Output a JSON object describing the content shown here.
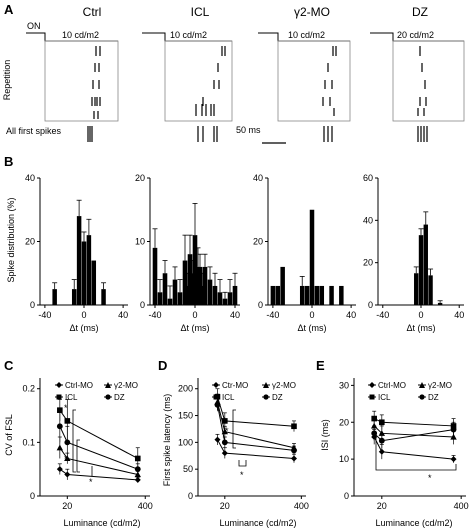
{
  "panel_labels": {
    "a": "A",
    "b": "B",
    "c": "C",
    "d": "D",
    "e": "E"
  },
  "panel_a": {
    "on_label": "ON",
    "repetition_label": "Repetition",
    "all_first_spikes_label": "All first spikes",
    "scalebar_label": "50 ms",
    "conditions": [
      {
        "title": "Ctrl",
        "luminance": "10 cd/m2"
      },
      {
        "title": "ICL",
        "luminance": "10 cd/m2"
      },
      {
        "title": "γ2-MO",
        "luminance": "10 cd/m2"
      },
      {
        "title": "DZ",
        "luminance": "20 cd/m2"
      }
    ]
  },
  "panel_b": {
    "ylabel": "Spike distribution (%)",
    "xlabel": "Δt  (ms)"
  },
  "panel_c": {
    "ylabel": "CV of FSL",
    "xlabel": "Luminance (cd/m2)",
    "legend": [
      "Ctrl-MO",
      "γ2-MO",
      "ICL",
      "DZ"
    ],
    "sig": [
      "*",
      "*",
      "*"
    ]
  },
  "panel_d": {
    "ylabel": "First spike latency (ms)",
    "xlabel": "Luminance (cd/m2)",
    "legend": [
      "Ctr-MO",
      "γ2-MO",
      "ICL",
      "DZ"
    ],
    "sig": [
      "*",
      "*"
    ]
  },
  "panel_e": {
    "ylabel": "ISI (ms)",
    "xlabel": "Luminance (cd/m2)",
    "legend": [
      "Ctrl-MO",
      "γ2-MO",
      "ICL",
      "DZ"
    ],
    "sig": [
      "*"
    ]
  },
  "chart_data": [
    {
      "type": "bar",
      "panel": "B1",
      "x": [
        -30,
        -10,
        -5,
        0,
        5,
        10,
        20
      ],
      "values": [
        5,
        5,
        28,
        20,
        22,
        14,
        5
      ],
      "errors": [
        2,
        3,
        5,
        3,
        5,
        0,
        2
      ],
      "xticks": [
        -40,
        0,
        40
      ],
      "yticks": [
        0,
        20,
        40
      ],
      "xlim": [
        -45,
        45
      ],
      "ylim": [
        0,
        40
      ]
    },
    {
      "type": "bar",
      "panel": "B2",
      "x": [
        -40,
        -35,
        -30,
        -25,
        -20,
        -15,
        -10,
        -7,
        -5,
        -3,
        0,
        3,
        5,
        8,
        10,
        15,
        20,
        25,
        30,
        35,
        40
      ],
      "values": [
        9,
        2,
        5,
        1,
        4,
        2,
        7,
        3,
        8,
        5,
        11,
        6,
        6,
        3,
        6,
        4,
        3,
        2,
        1,
        2,
        3
      ],
      "errors": [
        3,
        2,
        2,
        2,
        2,
        2,
        4,
        2,
        3,
        2,
        5,
        3,
        2,
        2,
        2,
        2,
        2,
        2,
        1,
        2,
        2
      ],
      "xticks": [
        -40,
        0,
        40
      ],
      "yticks": [
        0,
        10,
        20
      ],
      "xlim": [
        -45,
        45
      ],
      "ylim": [
        0,
        20
      ]
    },
    {
      "type": "bar",
      "panel": "B3",
      "x": [
        -40,
        -35,
        -30,
        -10,
        -5,
        0,
        5,
        10,
        20,
        30
      ],
      "values": [
        6,
        6,
        12,
        6,
        6,
        30,
        6,
        6,
        6,
        6
      ],
      "errors": [
        0,
        0,
        0,
        3,
        0,
        0,
        0,
        0,
        0,
        0
      ],
      "xticks": [
        -40,
        0,
        40
      ],
      "yticks": [
        0,
        20,
        40
      ],
      "xlim": [
        -45,
        45
      ],
      "ylim": [
        0,
        40
      ]
    },
    {
      "type": "bar",
      "panel": "B4",
      "x": [
        -5,
        0,
        5,
        10,
        20
      ],
      "values": [
        15,
        33,
        38,
        14,
        1
      ],
      "errors": [
        3,
        3,
        6,
        3,
        1
      ],
      "xticks": [
        -40,
        0,
        40
      ],
      "yticks": [
        0,
        20,
        40,
        60
      ],
      "xlim": [
        -45,
        45
      ],
      "ylim": [
        0,
        60
      ]
    },
    {
      "type": "line",
      "panel": "C",
      "xscale": "log",
      "xticks": [
        20,
        400
      ],
      "yticks": [
        0,
        0.1,
        0.2
      ],
      "xlim": [
        7,
        480
      ],
      "ylim": [
        0,
        0.22
      ],
      "series": [
        {
          "name": "Ctrl-MO",
          "marker": "diamond",
          "x": [
            15,
            20,
            300
          ],
          "y": [
            0.05,
            0.04,
            0.03
          ],
          "err": [
            0.01,
            0.01,
            0.005
          ]
        },
        {
          "name": "γ2-MO",
          "marker": "triangle",
          "x": [
            15,
            20,
            300
          ],
          "y": [
            0.09,
            0.07,
            0.04
          ],
          "err": [
            0.02,
            0.01,
            0.01
          ]
        },
        {
          "name": "ICL",
          "marker": "square",
          "x": [
            15,
            20,
            300
          ],
          "y": [
            0.16,
            0.14,
            0.07
          ],
          "err": [
            0.02,
            0.04,
            0.02
          ]
        },
        {
          "name": "DZ",
          "marker": "circle",
          "x": [
            15,
            20,
            300
          ],
          "y": [
            0.13,
            0.1,
            0.05
          ],
          "err": [
            0.03,
            0.03,
            0.01
          ]
        }
      ]
    },
    {
      "type": "line",
      "panel": "D",
      "xscale": "log",
      "xticks": [
        20,
        400
      ],
      "yticks": [
        0,
        50,
        100,
        150,
        200
      ],
      "xlim": [
        7,
        480
      ],
      "ylim": [
        0,
        220
      ],
      "series": [
        {
          "name": "Ctr-MO",
          "marker": "diamond",
          "x": [
            15,
            20,
            300
          ],
          "y": [
            105,
            80,
            70
          ],
          "err": [
            10,
            10,
            8
          ]
        },
        {
          "name": "γ2-MO",
          "marker": "triangle",
          "x": [
            15,
            20,
            300
          ],
          "y": [
            175,
            120,
            90
          ],
          "err": [
            15,
            10,
            8
          ]
        },
        {
          "name": "ICL",
          "marker": "square",
          "x": [
            15,
            20,
            300
          ],
          "y": [
            185,
            140,
            130
          ],
          "err": [
            15,
            15,
            10
          ]
        },
        {
          "name": "DZ",
          "marker": "circle",
          "x": [
            15,
            20,
            300
          ],
          "y": [
            170,
            100,
            85
          ],
          "err": [
            12,
            10,
            8
          ]
        }
      ]
    },
    {
      "type": "line",
      "panel": "E",
      "xscale": "log",
      "xticks": [
        20,
        400
      ],
      "yticks": [
        0,
        10,
        20,
        30
      ],
      "xlim": [
        7,
        480
      ],
      "ylim": [
        0,
        32
      ],
      "series": [
        {
          "name": "Ctrl-MO",
          "marker": "diamond",
          "x": [
            15,
            20,
            300
          ],
          "y": [
            16,
            12,
            10
          ],
          "err": [
            2,
            2,
            1
          ]
        },
        {
          "name": "γ2-MO",
          "marker": "triangle",
          "x": [
            15,
            20,
            300
          ],
          "y": [
            19,
            17,
            16
          ],
          "err": [
            2,
            2,
            2
          ]
        },
        {
          "name": "ICL",
          "marker": "square",
          "x": [
            15,
            20,
            300
          ],
          "y": [
            21,
            20,
            19
          ],
          "err": [
            2,
            2,
            2
          ]
        },
        {
          "name": "DZ",
          "marker": "circle",
          "x": [
            15,
            20,
            300
          ],
          "y": [
            17,
            15,
            18
          ],
          "err": [
            2,
            2,
            2
          ]
        }
      ]
    }
  ]
}
